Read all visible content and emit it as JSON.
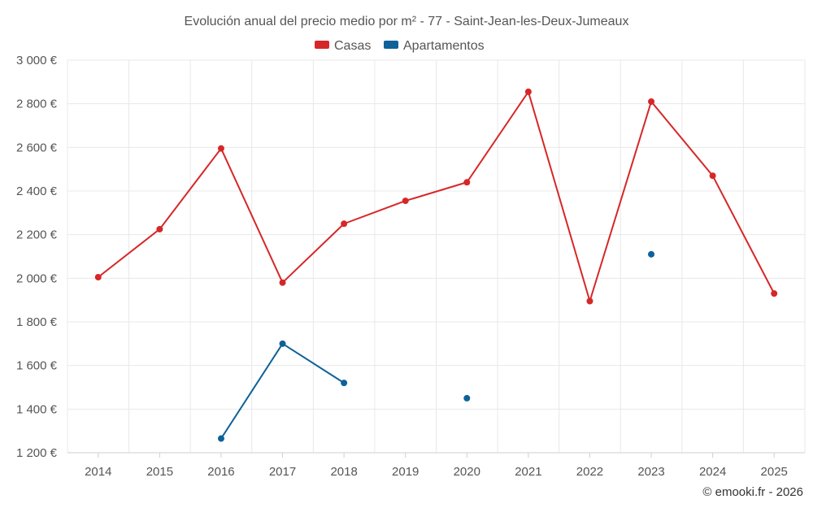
{
  "chart_data": {
    "type": "line",
    "title": "Evolución anual del precio medio por m² - 77 - Saint-Jean-les-Deux-Jumeaux",
    "categories": [
      "2014",
      "2015",
      "2016",
      "2017",
      "2018",
      "2019",
      "2020",
      "2021",
      "2022",
      "2023",
      "2024",
      "2025"
    ],
    "y_ticks": [
      "1 200 €",
      "1 400 €",
      "1 600 €",
      "1 800 €",
      "2 000 €",
      "2 200 €",
      "2 400 €",
      "2 600 €",
      "2 800 €",
      "3 000 €"
    ],
    "ylim": [
      1200,
      3000
    ],
    "grid": true,
    "legend_position": "top-center",
    "series": [
      {
        "name": "Casas",
        "color": "#d62728",
        "values": [
          2005,
          2225,
          2595,
          1980,
          2250,
          2355,
          2440,
          2855,
          1895,
          2810,
          2470,
          1930
        ]
      },
      {
        "name": "Apartamentos",
        "color": "#0e6199",
        "values": [
          null,
          null,
          1265,
          1700,
          1520,
          null,
          1450,
          null,
          null,
          2110,
          null,
          null
        ]
      }
    ],
    "credit": "© emooki.fr - 2026"
  }
}
